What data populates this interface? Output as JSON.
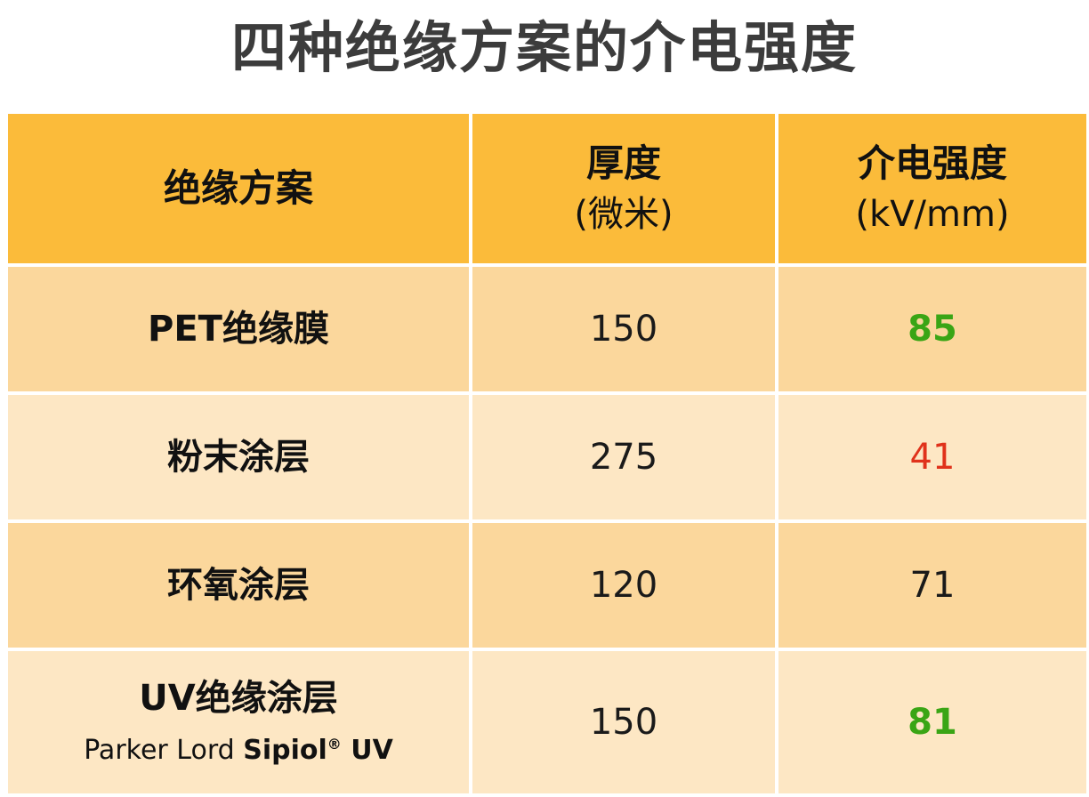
{
  "title": "四种绝缘方案的介电强度",
  "header": {
    "col1": "绝缘方案",
    "col2_main": "厚度",
    "col2_sub": "(微米)",
    "col3_main": "介电强度",
    "col3_sub": "(kV/mm)"
  },
  "rows": [
    {
      "scheme": "PET绝缘膜",
      "thickness": "150",
      "strength": "85"
    },
    {
      "scheme": "粉末涂层",
      "thickness": "275",
      "strength": "41"
    },
    {
      "scheme": "环氧涂层",
      "thickness": "120",
      "strength": "71"
    },
    {
      "scheme": "UV绝缘涂层",
      "brand_prefix": "Parker Lord ",
      "brand_bold": "Sipiol",
      "brand_mark": "®",
      "brand_suffix": " UV",
      "thickness": "150",
      "strength": "81"
    }
  ],
  "colors": {
    "header_bg": "#fbbb3a",
    "row_dark": "#fbd79c",
    "row_light": "#fde7c4",
    "good": "#3aa515",
    "bad": "#e0321b"
  }
}
